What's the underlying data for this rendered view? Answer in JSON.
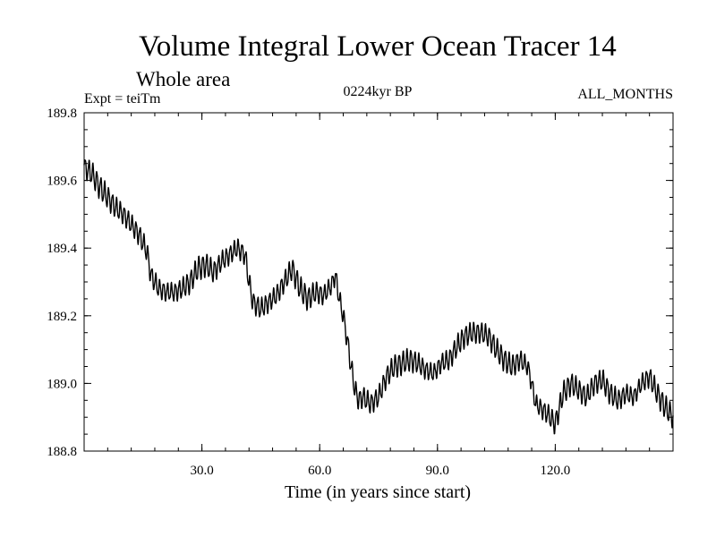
{
  "chart_data": {
    "type": "line",
    "title": "Volume Integral Lower Ocean Tracer 14",
    "subtitle": "Whole area",
    "annotations": {
      "left": "Expt = teiTm",
      "center": "0224kyr BP",
      "right": "ALL_MONTHS"
    },
    "xlabel": "Time (in years since start)",
    "ylabel": "",
    "xlim": [
      0,
      150
    ],
    "ylim": [
      188.8,
      189.8
    ],
    "xticks": [
      30,
      60,
      90,
      120
    ],
    "xtick_labels": [
      "30.0",
      "60.0",
      "90.0",
      "120.0"
    ],
    "yticks": [
      188.8,
      189.0,
      189.2,
      189.4,
      189.6,
      189.8
    ],
    "ytick_labels": [
      "188.8",
      "189.0",
      "189.2",
      "189.4",
      "189.6",
      "189.8"
    ],
    "grid": false,
    "legend": "none",
    "series": [
      {
        "name": "Lower Ocean Tracer 14",
        "color": "#000000",
        "seasonal_amplitude": 0.03,
        "trend_x": [
          0,
          2,
          4,
          6,
          8,
          10,
          12,
          14,
          16,
          17,
          19,
          21,
          23,
          25,
          27,
          29,
          31,
          33,
          35,
          37,
          39,
          41,
          42,
          43,
          45,
          47,
          49,
          51,
          53,
          55,
          57,
          59,
          61,
          63,
          64,
          65,
          66,
          67,
          68,
          69,
          70,
          71,
          73,
          75,
          77,
          79,
          81,
          83,
          85,
          87,
          89,
          91,
          93,
          95,
          97,
          99,
          101,
          103,
          105,
          107,
          109,
          111,
          113,
          114,
          115,
          116,
          118,
          120,
          122,
          124,
          126,
          128,
          130,
          132,
          134,
          136,
          138,
          140,
          142,
          144,
          146,
          148,
          150
        ],
        "trend_y": [
          189.64,
          189.62,
          189.58,
          189.55,
          189.52,
          189.5,
          189.47,
          189.44,
          189.39,
          189.32,
          189.28,
          189.27,
          189.27,
          189.28,
          189.3,
          189.34,
          189.35,
          189.33,
          189.36,
          189.38,
          189.4,
          189.38,
          189.3,
          189.24,
          189.22,
          189.24,
          189.26,
          189.3,
          189.34,
          189.28,
          189.25,
          189.27,
          189.26,
          189.29,
          189.32,
          189.25,
          189.2,
          189.13,
          189.05,
          188.98,
          188.95,
          188.96,
          188.94,
          188.96,
          189.02,
          189.05,
          189.06,
          189.07,
          189.06,
          189.04,
          189.03,
          189.06,
          189.07,
          189.11,
          189.14,
          189.15,
          189.15,
          189.14,
          189.1,
          189.07,
          189.05,
          189.07,
          189.05,
          189.0,
          188.94,
          188.93,
          188.91,
          188.88,
          188.97,
          189.0,
          188.98,
          188.96,
          189.0,
          189.01,
          188.97,
          188.95,
          188.97,
          188.96,
          189.0,
          189.02,
          188.97,
          188.93,
          188.9
        ]
      }
    ]
  }
}
